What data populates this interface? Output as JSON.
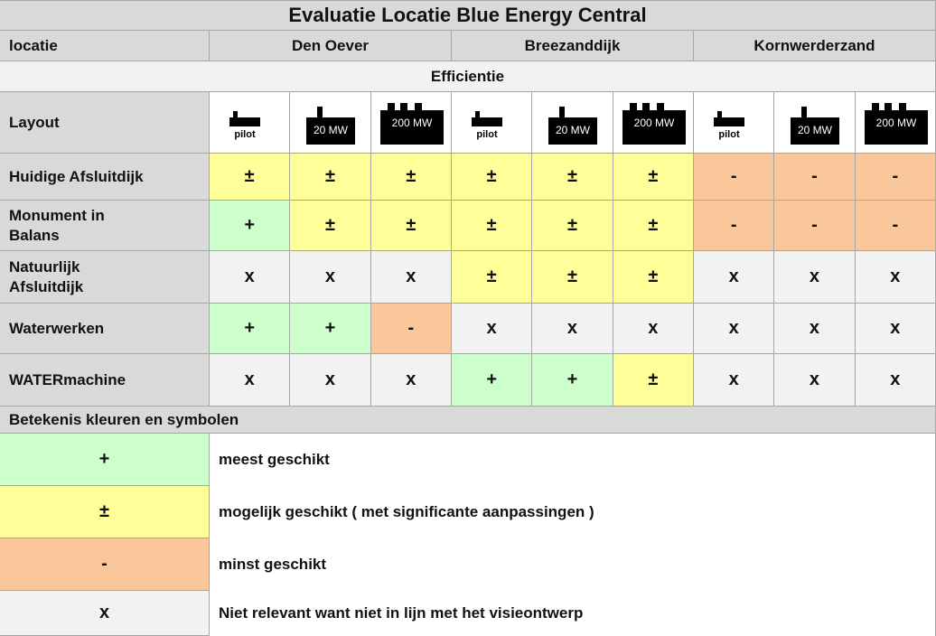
{
  "title": "Evaluatie Locatie Blue Energy Central",
  "header": {
    "label": "locatie",
    "locations": [
      "Den Oever",
      "Breezanddijk",
      "Kornwerderzand"
    ]
  },
  "section": "Efficientie",
  "layout": {
    "label": "Layout",
    "icons": [
      "pilot",
      "20 MW",
      "200 MW",
      "pilot",
      "20 MW",
      "200 MW",
      "pilot",
      "20 MW",
      "200 MW"
    ]
  },
  "rows": [
    {
      "label": [
        "Huidige Afsluitdijk"
      ],
      "cells": [
        "±",
        "±",
        "±",
        "±",
        "±",
        "±",
        "-",
        "-",
        "-"
      ]
    },
    {
      "label": [
        "Monument in",
        "Balans"
      ],
      "cells": [
        "+",
        "±",
        "±",
        "±",
        "±",
        "±",
        "-",
        "-",
        "-"
      ]
    },
    {
      "label": [
        "Natuurlijk",
        "Afsluitdijk"
      ],
      "cells": [
        "x",
        "x",
        "x",
        "±",
        "±",
        "±",
        "x",
        "x",
        "x"
      ]
    },
    {
      "label": [
        "Waterwerken"
      ],
      "cells": [
        "+",
        "+",
        "-",
        "x",
        "x",
        "x",
        "x",
        "x",
        "x"
      ]
    },
    {
      "label": [
        "WATERmachine"
      ],
      "cells": [
        "x",
        "x",
        "x",
        "+",
        "+",
        "±",
        "x",
        "x",
        "x"
      ]
    }
  ],
  "legend": {
    "title": "Betekenis kleuren en symbolen",
    "items": [
      {
        "symbol": "+",
        "color": "#ccffcc",
        "text": "meest geschikt"
      },
      {
        "symbol": "±",
        "color": "#ffff99",
        "text": "mogelijk geschikt ( met significante aanpassingen )"
      },
      {
        "symbol": "-",
        "color": "#fac79a",
        "text": "minst geschikt"
      },
      {
        "symbol": "x",
        "color": "#f2f2f2",
        "text": "Niet relevant want niet in lijn met het visieontwerp"
      }
    ]
  }
}
